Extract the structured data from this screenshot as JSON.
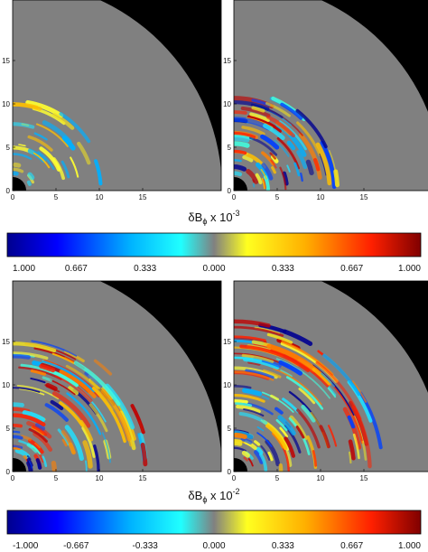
{
  "panels": [
    {
      "xticks": [
        0,
        5,
        10,
        15
      ],
      "yticks": [
        0,
        5,
        10,
        15
      ]
    },
    {
      "xticks": [
        0,
        5,
        10,
        15
      ],
      "yticks": [
        0,
        5,
        10,
        15
      ]
    },
    {
      "xticks": [
        0,
        5,
        10,
        15
      ],
      "yticks": [
        0,
        5,
        10,
        15
      ]
    },
    {
      "xticks": [
        0,
        5,
        10,
        15
      ],
      "yticks": [
        0,
        5,
        10,
        15
      ]
    }
  ],
  "colorbars": [
    {
      "symbol": "δB",
      "subscript": "ϕ",
      "text": " x 10",
      "exponent": "-3",
      "tick_labels": [
        "1.000",
        "0.667",
        "0.333",
        "0.000",
        "0.333",
        "0.667",
        "1.000"
      ]
    },
    {
      "symbol": "δB",
      "subscript": "ϕ",
      "text": " x 10",
      "exponent": "-2",
      "tick_labels": [
        "-1.000",
        "-0.667",
        "-0.333",
        "0.000",
        "0.333",
        "0.667",
        "1.000"
      ]
    }
  ]
}
